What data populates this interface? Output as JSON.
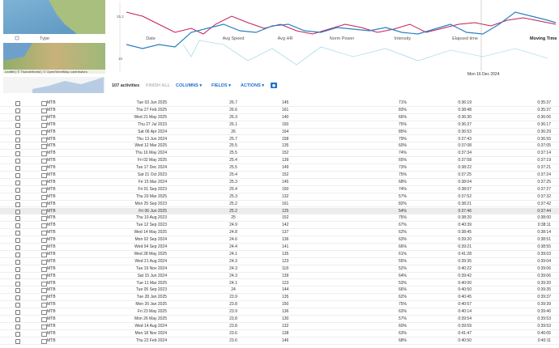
{
  "map": {
    "attribution": "Leaflet | © Thunderforest | © OpenStreetMap contributors"
  },
  "chart": {
    "axis_top": "25.2",
    "axis_bottom": "15",
    "hover_date": "Mon 16 Dec 2024"
  },
  "header": {
    "columns": [
      "Type",
      "Date",
      "Avg Speed",
      "Avg HR",
      "Norm Power",
      "Intensity",
      "Elapsed time",
      "Moving Time ▲"
    ]
  },
  "toolbar": {
    "count": "107 activities",
    "finish": "FINISH ALL",
    "columns": "COLUMNS ▾",
    "fields": "FIELDS ▾",
    "actions": "ACTIONS ▾"
  },
  "table": {
    "rows": [
      [
        "MTB",
        "Tue 03 Jun 2025",
        "26.7",
        "145",
        "71%",
        "0:36:19",
        "0:35:37"
      ],
      [
        "MTB",
        "Thu 27 Feb 2025",
        "26.6",
        "161",
        "83%",
        "0:38:48",
        "0:35:37"
      ],
      [
        "MTB",
        "Wed 21 May 2025",
        "26.3",
        "140",
        "66%",
        "0:36:30",
        "0:36:06"
      ],
      [
        "MTB",
        "Thu 27 Jul 2023",
        "26.1",
        "150",
        "75%",
        "0:36:37",
        "0:36:17"
      ],
      [
        "MTB",
        "Sat 06 Apr 2024",
        "26",
        "164",
        "85%",
        "0:36:53",
        "0:36:29"
      ],
      [
        "MTB",
        "Thu 13 Jun 2024",
        "25.7",
        "158",
        "79%",
        "0:37:43",
        "0:36:55"
      ],
      [
        "MTB",
        "Wed 12 Mar 2025",
        "25.5",
        "135",
        "60%",
        "0:37:08",
        "0:37:05"
      ],
      [
        "MTB",
        "Thu 16 May 2024",
        "25.5",
        "152",
        "74%",
        "0:37:34",
        "0:37:14"
      ],
      [
        "MTB",
        "Fri 02 May 2025",
        "25.4",
        "139",
        "65%",
        "0:37:58",
        "0:37:19"
      ],
      [
        "MTB",
        "Tue 17 Dec 2024",
        "25.5",
        "149",
        "73%",
        "0:38:22",
        "0:37:21"
      ],
      [
        "MTB",
        "Sat 21 Oct 2023",
        "25.4",
        "152",
        "75%",
        "0:37:25",
        "0:37:24"
      ],
      [
        "MTB",
        "Fri 15 Mar 2024",
        "25.3",
        "145",
        "68%",
        "0:38:04",
        "0:37:25"
      ],
      [
        "MTB",
        "Fri 01 Sep 2023",
        "25.4",
        "150",
        "74%",
        "0:38:07",
        "0:37:27"
      ],
      [
        "MTB",
        "Thu 20 Mar 2025",
        "25.3",
        "132",
        "57%",
        "0:37:52",
        "0:37:32"
      ],
      [
        "MTB",
        "Mon 25 Sep 2023",
        "25.2",
        "161",
        "82%",
        "0:38:21",
        "0:37:42"
      ],
      [
        "MTB",
        "Fri 06 Jun 2025",
        "25.2",
        "125",
        "54%",
        "0:37:46",
        "0:37:44"
      ],
      [
        "MTB",
        "Thu 10 Aug 2023",
        "25",
        "152",
        "75%",
        "0:38:20",
        "0:38:00"
      ],
      [
        "MTB",
        "Tue 12 Sep 2023",
        "24.9",
        "142",
        "67%",
        "0:40:39",
        "0:38:11"
      ],
      [
        "MTB",
        "Wed 14 May 2025",
        "24.8",
        "137",
        "62%",
        "0:38:45",
        "0:38:14"
      ],
      [
        "MTB",
        "Mon 02 Sep 2024",
        "24.6",
        "136",
        "63%",
        "0:39:20",
        "0:38:51"
      ],
      [
        "MTB",
        "Wed 04 Sep 2024",
        "24.4",
        "141",
        "66%",
        "0:39:21",
        "0:38:55"
      ],
      [
        "MTB",
        "Wed 28 May 2025",
        "24.1",
        "135",
        "61%",
        "0:41:28",
        "0:39:03"
      ],
      [
        "MTB",
        "Wed 21 Aug 2024",
        "24.3",
        "123",
        "55%",
        "0:39:35",
        "0:39:04"
      ],
      [
        "MTB",
        "Tue 19 Nov 2024",
        "24.3",
        "118",
        "52%",
        "0:40:22",
        "0:39:06"
      ],
      [
        "MTB",
        "Sat 15 Jun 2024",
        "24.3",
        "139",
        "64%",
        "0:39:42",
        "0:39:06"
      ],
      [
        "MTB",
        "Tue 11 Mar 2025",
        "24.1",
        "123",
        "53%",
        "0:40:00",
        "0:39:20"
      ],
      [
        "MTB",
        "Tue 05 Sep 2023",
        "24",
        "144",
        "66%",
        "0:40:50",
        "0:39:35"
      ],
      [
        "MTB",
        "Tue 28 Jan 2025",
        "23.9",
        "135",
        "62%",
        "0:40:45",
        "0:39:37"
      ],
      [
        "MTB",
        "Mon 20 Jan 2025",
        "23.8",
        "150",
        "75%",
        "0:40:57",
        "0:39:39"
      ],
      [
        "MTB",
        "Fri 23 May 2025",
        "23.9",
        "136",
        "63%",
        "0:40:14",
        "0:39:46"
      ],
      [
        "MTB",
        "Mon 26 May 2025",
        "23.8",
        "130",
        "57%",
        "0:39:54",
        "0:39:53"
      ],
      [
        "MTB",
        "Wed 14 Aug 2024",
        "23.8",
        "132",
        "60%",
        "0:39:59",
        "0:39:53"
      ],
      [
        "MTB",
        "Mon 18 Nov 2024",
        "23.6",
        "138",
        "63%",
        "0:41:47",
        "0:40:05"
      ],
      [
        "MTB",
        "Thu 22 Feb 2024",
        "23.6",
        "146",
        "68%",
        "0:40:50",
        "0:40:11"
      ]
    ]
  }
}
